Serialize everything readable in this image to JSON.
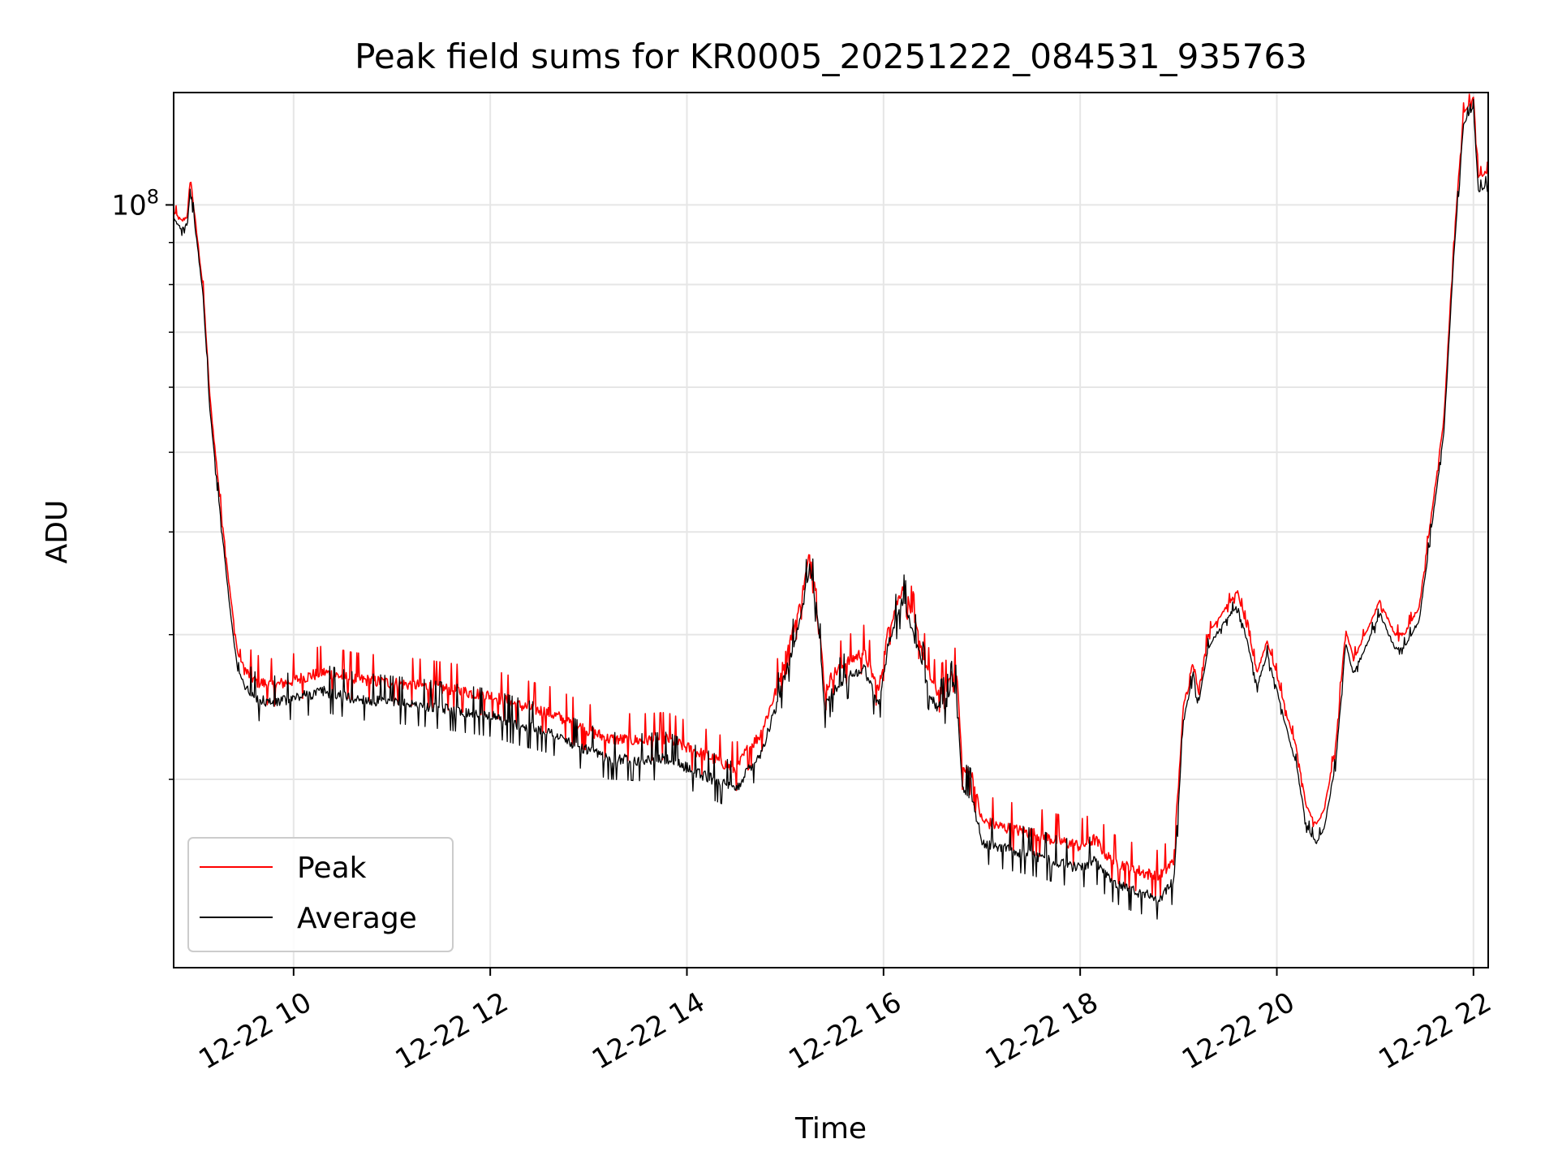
{
  "chart_data": {
    "type": "line",
    "title": "Peak field sums for KR0005_20251222_084531_935763",
    "xlabel": "Time",
    "ylabel": "ADU",
    "yscale": "log",
    "xlim": [
      8.78,
      22.15
    ],
    "ylim": [
      11800000,
      137000000
    ],
    "x_ticks": [
      {
        "value": 10,
        "label": "12-22 10"
      },
      {
        "value": 12,
        "label": "12-22 12"
      },
      {
        "value": 14,
        "label": "12-22 14"
      },
      {
        "value": 16,
        "label": "12-22 16"
      },
      {
        "value": 18,
        "label": "12-22 18"
      },
      {
        "value": 20,
        "label": "12-22 20"
      },
      {
        "value": 22,
        "label": "12-22 22"
      }
    ],
    "y_major_ticks": [
      {
        "value": 100000000,
        "base": "10",
        "exp": "8"
      }
    ],
    "y_minor_ticks": [
      20000000,
      30000000,
      40000000,
      50000000,
      60000000,
      70000000,
      80000000,
      90000000
    ],
    "grid": true,
    "legend_position": "bottom-left",
    "colors": {
      "peak": "#ff0000",
      "average": "#000000",
      "grid": "#e6e6e6"
    },
    "series": [
      {
        "name": "Peak",
        "color": "#ff0000",
        "points": [
          [
            8.78,
            98000000
          ],
          [
            8.86,
            95500000
          ],
          [
            8.92,
            97000000
          ],
          [
            8.95,
            108000000
          ],
          [
            8.99,
            98000000
          ],
          [
            9.08,
            79000000
          ],
          [
            9.15,
            58000000
          ],
          [
            9.25,
            44000000
          ],
          [
            9.35,
            34000000
          ],
          [
            9.43,
            28500000
          ],
          [
            9.52,
            27000000
          ],
          [
            9.62,
            26300000
          ],
          [
            9.8,
            26000000
          ],
          [
            10.0,
            26400000
          ],
          [
            10.3,
            27000000
          ],
          [
            10.6,
            26500000
          ],
          [
            11.0,
            26200000
          ],
          [
            11.3,
            26000000
          ],
          [
            11.6,
            25700000
          ],
          [
            12.0,
            25300000
          ],
          [
            12.3,
            24600000
          ],
          [
            12.6,
            24100000
          ],
          [
            12.9,
            23200000
          ],
          [
            13.2,
            22400000
          ],
          [
            13.5,
            22300000
          ],
          [
            13.8,
            22400000
          ],
          [
            14.1,
            21600000
          ],
          [
            14.35,
            21000000
          ],
          [
            14.5,
            20500000
          ],
          [
            14.6,
            21600000
          ],
          [
            14.75,
            22700000
          ],
          [
            14.9,
            25500000
          ],
          [
            15.05,
            29500000
          ],
          [
            15.15,
            32500000
          ],
          [
            15.25,
            37600000
          ],
          [
            15.33,
            33000000
          ],
          [
            15.4,
            25500000
          ],
          [
            15.48,
            26800000
          ],
          [
            15.6,
            27600000
          ],
          [
            15.8,
            28600000
          ],
          [
            15.95,
            25600000
          ],
          [
            16.05,
            30500000
          ],
          [
            16.2,
            34500000
          ],
          [
            16.35,
            30000000
          ],
          [
            16.45,
            27000000
          ],
          [
            16.55,
            25500000
          ],
          [
            16.65,
            26000000
          ],
          [
            16.7,
            27200000
          ],
          [
            16.75,
            26500000
          ],
          [
            16.8,
            20600000
          ],
          [
            16.9,
            20200000
          ],
          [
            17.0,
            17800000
          ],
          [
            17.2,
            17500000
          ],
          [
            17.5,
            17200000
          ],
          [
            17.8,
            16800000
          ],
          [
            18.0,
            16600000
          ],
          [
            18.15,
            16900000
          ],
          [
            18.3,
            16000000
          ],
          [
            18.5,
            15600000
          ],
          [
            18.8,
            15200000
          ],
          [
            18.95,
            15900000
          ],
          [
            19.05,
            24500000
          ],
          [
            19.15,
            28000000
          ],
          [
            19.2,
            25500000
          ],
          [
            19.3,
            30000000
          ],
          [
            19.45,
            32000000
          ],
          [
            19.6,
            33800000
          ],
          [
            19.7,
            30500000
          ],
          [
            19.8,
            27000000
          ],
          [
            19.9,
            29500000
          ],
          [
            20.0,
            26800000
          ],
          [
            20.1,
            24000000
          ],
          [
            20.2,
            21800000
          ],
          [
            20.3,
            18500000
          ],
          [
            20.4,
            17600000
          ],
          [
            20.48,
            18300000
          ],
          [
            20.6,
            22000000
          ],
          [
            20.7,
            30500000
          ],
          [
            20.78,
            28000000
          ],
          [
            20.9,
            30000000
          ],
          [
            21.05,
            33000000
          ],
          [
            21.2,
            30000000
          ],
          [
            21.3,
            30100000
          ],
          [
            21.45,
            32500000
          ],
          [
            21.55,
            40000000
          ],
          [
            21.7,
            55000000
          ],
          [
            21.8,
            90000000
          ],
          [
            21.9,
            130000000
          ],
          [
            22.0,
            135000000
          ],
          [
            22.05,
            108000000
          ],
          [
            22.15,
            110000000
          ]
        ]
      },
      {
        "name": "Average",
        "color": "#000000",
        "points": [
          [
            8.78,
            96000000
          ],
          [
            8.86,
            93500000
          ],
          [
            8.92,
            95000000
          ],
          [
            8.95,
            105000000
          ],
          [
            8.99,
            96000000
          ],
          [
            9.08,
            77500000
          ],
          [
            9.15,
            56000000
          ],
          [
            9.25,
            42500000
          ],
          [
            9.35,
            32500000
          ],
          [
            9.43,
            27200000
          ],
          [
            9.52,
            25800000
          ],
          [
            9.62,
            25000000
          ],
          [
            9.8,
            24800000
          ],
          [
            10.0,
            25100000
          ],
          [
            10.3,
            25600000
          ],
          [
            10.6,
            25100000
          ],
          [
            11.0,
            24800000
          ],
          [
            11.3,
            24600000
          ],
          [
            11.6,
            24300000
          ],
          [
            12.0,
            23900000
          ],
          [
            12.3,
            23300000
          ],
          [
            12.6,
            22800000
          ],
          [
            12.9,
            21900000
          ],
          [
            13.2,
            21200000
          ],
          [
            13.5,
            21100000
          ],
          [
            13.8,
            21200000
          ],
          [
            14.1,
            20400000
          ],
          [
            14.35,
            19800000
          ],
          [
            14.5,
            19400000
          ],
          [
            14.6,
            20400000
          ],
          [
            14.75,
            21500000
          ],
          [
            14.9,
            24300000
          ],
          [
            15.05,
            28200000
          ],
          [
            15.15,
            31200000
          ],
          [
            15.25,
            36300000
          ],
          [
            15.33,
            31700000
          ],
          [
            15.4,
            24400000
          ],
          [
            15.48,
            25600000
          ],
          [
            15.6,
            26400000
          ],
          [
            15.8,
            27400000
          ],
          [
            15.95,
            24500000
          ],
          [
            16.05,
            29300000
          ],
          [
            16.2,
            33200000
          ],
          [
            16.35,
            28800000
          ],
          [
            16.45,
            25900000
          ],
          [
            16.55,
            24400000
          ],
          [
            16.65,
            24900000
          ],
          [
            16.7,
            26000000
          ],
          [
            16.75,
            25400000
          ],
          [
            16.8,
            19500000
          ],
          [
            16.9,
            19100000
          ],
          [
            17.0,
            16800000
          ],
          [
            17.2,
            16500000
          ],
          [
            17.5,
            16200000
          ],
          [
            17.8,
            15800000
          ],
          [
            18.0,
            15600000
          ],
          [
            18.15,
            15900000
          ],
          [
            18.3,
            15100000
          ],
          [
            18.5,
            14700000
          ],
          [
            18.8,
            14300000
          ],
          [
            18.95,
            15000000
          ],
          [
            19.05,
            23500000
          ],
          [
            19.15,
            26900000
          ],
          [
            19.2,
            24500000
          ],
          [
            19.3,
            28900000
          ],
          [
            19.45,
            30900000
          ],
          [
            19.6,
            32600000
          ],
          [
            19.7,
            29400000
          ],
          [
            19.8,
            26000000
          ],
          [
            19.9,
            28400000
          ],
          [
            20.0,
            25700000
          ],
          [
            20.1,
            23000000
          ],
          [
            20.2,
            20800000
          ],
          [
            20.3,
            17600000
          ],
          [
            20.4,
            16700000
          ],
          [
            20.48,
            17400000
          ],
          [
            20.6,
            21000000
          ],
          [
            20.7,
            29300000
          ],
          [
            20.78,
            26900000
          ],
          [
            20.9,
            28900000
          ],
          [
            21.05,
            31800000
          ],
          [
            21.2,
            28900000
          ],
          [
            21.3,
            29000000
          ],
          [
            21.45,
            31300000
          ],
          [
            21.55,
            38600000
          ],
          [
            21.7,
            53000000
          ],
          [
            21.8,
            87000000
          ],
          [
            21.9,
            126000000
          ],
          [
            22.0,
            131000000
          ],
          [
            22.05,
            104000000
          ],
          [
            22.15,
            106000000
          ]
        ]
      }
    ]
  }
}
